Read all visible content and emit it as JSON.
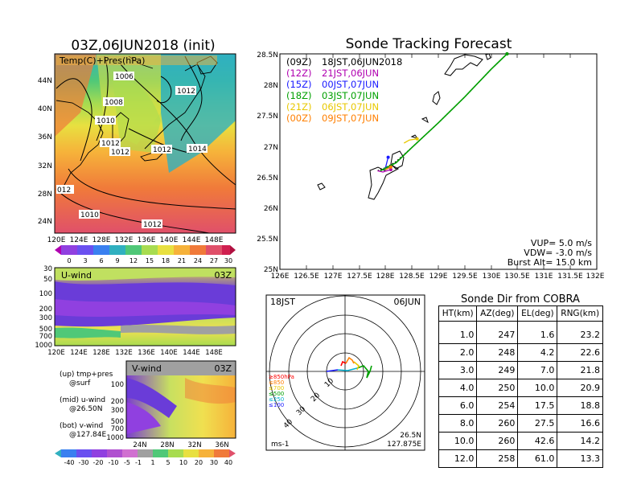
{
  "left": {
    "title": "03Z,06JUN2018 (init)",
    "map_label": "Temp(C)+Pres(hPa)",
    "map_lat_ticks": [
      "44N",
      "40N",
      "36N",
      "32N",
      "28N",
      "24N"
    ],
    "map_lon_ticks": [
      "120E",
      "124E",
      "128E",
      "132E",
      "136E",
      "140E",
      "144E",
      "148E"
    ],
    "pressure_labels": [
      "1006",
      "1008",
      "1010",
      "1012",
      "1012",
      "1012",
      "1012",
      "1014",
      "1010",
      "1012",
      "012"
    ],
    "temp_colorbar": [
      "0",
      "3",
      "6",
      "9",
      "12",
      "15",
      "18",
      "21",
      "24",
      "27",
      "30"
    ],
    "u_panel_label": "U-wind",
    "u_panel_time": "03Z",
    "u_y_ticks": [
      "30",
      "50",
      "100",
      "200",
      "300",
      "500",
      "700",
      "1000"
    ],
    "u_x_ticks": [
      "120E",
      "124E",
      "128E",
      "132E",
      "136E",
      "140E",
      "144E",
      "148E"
    ],
    "v_panel_label": "V-wind",
    "v_panel_time": "03Z",
    "v_y_ticks": [
      "100",
      "200",
      "300",
      "500",
      "700",
      "1000"
    ],
    "v_x_ticks": [
      "24N",
      "28N",
      "32N",
      "36N"
    ],
    "legend_lines": [
      "(up) tmp+pres",
      "@surf",
      "(mid) u-wind",
      "@26.50N",
      "(bot) v-wind",
      "@127.84E"
    ],
    "wind_colorbar": [
      "-40",
      "-30",
      "-20",
      "-10",
      "-5",
      "-1",
      "1",
      "5",
      "10",
      "20",
      "30",
      "40"
    ]
  },
  "track": {
    "title": "Sonde Tracking Forecast",
    "legend": [
      {
        "code": "(09Z)",
        "time": "18JST,06JUN2018",
        "color": "#000000"
      },
      {
        "code": "(12Z)",
        "time": "21JST,06JUN",
        "color": "#b000b0"
      },
      {
        "code": "(15Z)",
        "time": "00JST,07JUN",
        "color": "#1a1aff"
      },
      {
        "code": "(18Z)",
        "time": "03JST,07JUN",
        "color": "#00a000"
      },
      {
        "code": "(21Z)",
        "time": "06JST,07JUN",
        "color": "#e8c800"
      },
      {
        "code": "(00Z)",
        "time": "09JST,07JUN",
        "color": "#ff7f00"
      }
    ],
    "params": [
      "VUP= 5.0 m/s",
      "VDW= -3.0 m/s",
      "Burst Alt= 15.0 km"
    ]
  },
  "hodo": {
    "time_left": "18JST",
    "date_right": "06JUN",
    "loc_lat": "26.5N",
    "loc_lon": "127.875E",
    "unit": "ms-1",
    "ring_labels": [
      "10",
      "20",
      "30",
      "40"
    ],
    "level_legend": [
      {
        "text": "≥850hPa",
        "color": "#ff0000"
      },
      {
        "text": "≤850",
        "color": "#ff7f00"
      },
      {
        "text": "≤700",
        "color": "#e8c800"
      },
      {
        "text": "≤500",
        "color": "#00a000"
      },
      {
        "text": "≤250",
        "color": "#00b0d0"
      },
      {
        "text": "≤100",
        "color": "#1a1aff"
      }
    ]
  },
  "table": {
    "title": "Sonde Dir from COBRA",
    "headers": [
      "HT(km)",
      "AZ(deg)",
      "EL(deg)",
      "RNG(km)"
    ],
    "rows": [
      [
        "1.0",
        "247",
        "1.6",
        "23.2"
      ],
      [
        "2.0",
        "248",
        "4.2",
        "22.6"
      ],
      [
        "3.0",
        "249",
        "7.0",
        "21.8"
      ],
      [
        "4.0",
        "250",
        "10.0",
        "20.9"
      ],
      [
        "6.0",
        "254",
        "17.5",
        "18.8"
      ],
      [
        "8.0",
        "260",
        "27.5",
        "16.6"
      ],
      [
        "10.0",
        "260",
        "42.6",
        "14.2"
      ],
      [
        "12.0",
        "258",
        "61.0",
        "13.3"
      ]
    ]
  },
  "chart_data": [
    {
      "type": "line",
      "title": "Sonde Tracking Forecast",
      "xlim": [
        126,
        132
      ],
      "ylim": [
        25,
        28.5
      ],
      "x_ticks": [
        "126E",
        "126.5E",
        "127E",
        "127.5E",
        "128E",
        "128.5E",
        "129E",
        "129.5E",
        "130E",
        "130.5E",
        "131E",
        "131.5E",
        "132E"
      ],
      "y_ticks": [
        "25N",
        "25.5N",
        "26N",
        "26.5N",
        "27N",
        "27.5N",
        "28N",
        "28.5N"
      ],
      "series": [
        {
          "name": "(09Z)",
          "color": "#000000",
          "x": [
            127.85,
            127.9,
            128.0,
            128.1,
            128.2,
            128.5,
            129.0,
            129.5,
            130.0,
            130.3
          ],
          "y": [
            26.6,
            26.62,
            26.65,
            26.7,
            26.75,
            26.98,
            27.38,
            27.8,
            28.25,
            28.5
          ]
        },
        {
          "name": "(12Z)",
          "color": "#b000b0",
          "x": [
            127.85,
            127.95,
            128.1
          ],
          "y": [
            26.6,
            26.58,
            26.62
          ]
        },
        {
          "name": "(15Z)",
          "color": "#1a1aff",
          "x": [
            127.9,
            128.0,
            128.05
          ],
          "y": [
            26.6,
            26.65,
            26.82
          ]
        },
        {
          "name": "(18Z)",
          "color": "#00a000",
          "x": [
            127.9,
            128.2,
            128.5,
            129.0,
            129.5,
            130.0,
            130.3
          ],
          "y": [
            26.6,
            26.73,
            26.98,
            27.38,
            27.8,
            28.25,
            28.5
          ]
        },
        {
          "name": "(21Z)",
          "color": "#e8c800",
          "x": [
            128.35,
            128.45,
            128.6
          ],
          "y": [
            27.05,
            27.1,
            27.12
          ]
        },
        {
          "name": "(00Z)",
          "color": "#ff7f00",
          "x": [
            128.0,
            128.1
          ],
          "y": [
            26.62,
            26.66
          ]
        }
      ]
    },
    {
      "type": "table",
      "title": "Sonde Dir from COBRA",
      "columns": [
        "HT(km)",
        "AZ(deg)",
        "EL(deg)",
        "RNG(km)"
      ],
      "rows": [
        [
          1.0,
          247,
          1.6,
          23.2
        ],
        [
          2.0,
          248,
          4.2,
          22.6
        ],
        [
          3.0,
          249,
          7.0,
          21.8
        ],
        [
          4.0,
          250,
          10.0,
          20.9
        ],
        [
          6.0,
          254,
          17.5,
          18.8
        ],
        [
          8.0,
          260,
          27.5,
          16.6
        ],
        [
          10.0,
          260,
          42.6,
          14.2
        ],
        [
          12.0,
          258,
          61.0,
          13.3
        ]
      ]
    }
  ]
}
